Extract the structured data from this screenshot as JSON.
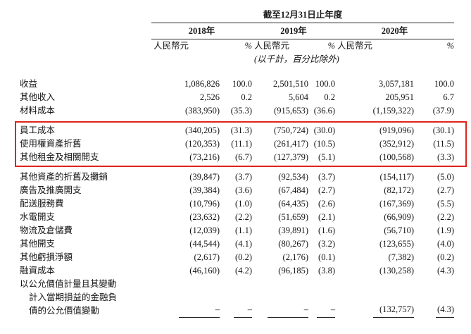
{
  "table": {
    "period_header": "截至12月31日止年度",
    "years": [
      "2018年",
      "2019年",
      "2020年"
    ],
    "currency_header": "人民幣元",
    "percent_header": "%",
    "unit_note": "(以千計，百分比除外)",
    "highlight_color": "#e0241a",
    "rows_before_highlight": [
      {
        "label": "收益",
        "values": [
          "1,086,826",
          "100.0",
          "2,501,510",
          "100.0",
          "3,057,181",
          "100.0"
        ]
      },
      {
        "label": "其他收入",
        "values": [
          "2,526",
          "0.2",
          "5,604",
          "0.2",
          "205,951",
          "6.7"
        ]
      },
      {
        "label": "材料成本",
        "values": [
          "(383,950)",
          "(35.3)",
          "(915,653)",
          "(36.6)",
          "(1,159,322)",
          "(37.9)"
        ]
      }
    ],
    "highlighted_rows": [
      {
        "label": "員工成本",
        "values": [
          "(340,205)",
          "(31.3)",
          "(750,724)",
          "(30.0)",
          "(919,096)",
          "(30.1)"
        ]
      },
      {
        "label": "使用權資產折舊",
        "values": [
          "(120,353)",
          "(11.1)",
          "(261,417)",
          "(10.5)",
          "(352,912)",
          "(11.5)"
        ]
      },
      {
        "label": "其他租金及相關開支",
        "values": [
          "(73,216)",
          "(6.7)",
          "(127,379)",
          "(5.1)",
          "(100,568)",
          "(3.3)"
        ]
      }
    ],
    "rows_after_highlight": [
      {
        "label": "其他資產的折舊及攤銷",
        "values": [
          "(39,847)",
          "(3.7)",
          "(92,534)",
          "(3.7)",
          "(154,117)",
          "(5.0)"
        ]
      },
      {
        "label": "廣告及推廣開支",
        "values": [
          "(39,384)",
          "(3.6)",
          "(67,484)",
          "(2.7)",
          "(82,172)",
          "(2.7)"
        ]
      },
      {
        "label": "配送服務費",
        "values": [
          "(10,796)",
          "(1.0)",
          "(64,435)",
          "(2.6)",
          "(167,369)",
          "(5.5)"
        ]
      },
      {
        "label": "水電開支",
        "values": [
          "(23,632)",
          "(2.2)",
          "(51,659)",
          "(2.1)",
          "(66,909)",
          "(2.2)"
        ]
      },
      {
        "label": "物流及倉儲費",
        "values": [
          "(12,039)",
          "(1.1)",
          "(39,891)",
          "(1.6)",
          "(56,710)",
          "(1.9)"
        ]
      },
      {
        "label": "其他開支",
        "values": [
          "(44,544)",
          "(4.1)",
          "(80,267)",
          "(3.2)",
          "(123,655)",
          "(4.0)"
        ]
      },
      {
        "label": "其他虧損淨額",
        "values": [
          "(2,617)",
          "(0.2)",
          "(2,176)",
          "(0.1)",
          "(7,382)",
          "(0.2)"
        ]
      },
      {
        "label": "融資成本",
        "values": [
          "(46,160)",
          "(4.2)",
          "(96,185)",
          "(3.8)",
          "(130,258)",
          "(4.3)"
        ]
      }
    ],
    "final_row": {
      "label": "以公允價值計量且其變動\n計入當期損益的金融負\n債的公允價值變動",
      "values": [
        "–",
        "–",
        "–",
        "–",
        "(132,757)",
        "(4.3)"
      ]
    }
  }
}
